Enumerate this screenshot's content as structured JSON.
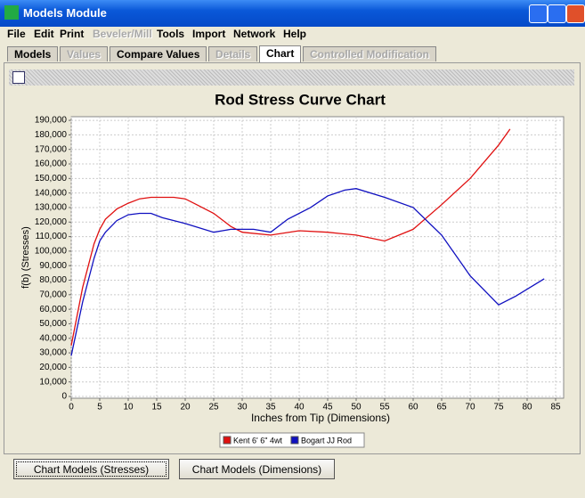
{
  "window": {
    "title": "Models Module"
  },
  "menu": [
    {
      "label": "File"
    },
    {
      "label": "Edit"
    },
    {
      "label": "Print"
    },
    {
      "label": "Beveler/Mill",
      "enabled": false
    },
    {
      "label": "Tools"
    },
    {
      "label": "Import"
    },
    {
      "label": "Network"
    },
    {
      "label": "Help"
    }
  ],
  "tabs": [
    {
      "label": "Models"
    },
    {
      "label": "Values",
      "enabled": false
    },
    {
      "label": "Compare Values"
    },
    {
      "label": "Details",
      "enabled": false
    },
    {
      "label": "Chart",
      "selected": true
    },
    {
      "label": "Controlled Modification",
      "enabled": false
    }
  ],
  "chart_data": {
    "type": "line",
    "title": "Rod Stress Curve Chart",
    "x_label": "Inches from Tip (Dimensions)",
    "y_label": "f(b) (Stresses)",
    "xlim": [
      0,
      86.4
    ],
    "xticks": [
      0,
      5,
      10,
      15,
      20,
      25,
      30,
      35,
      40,
      45,
      50,
      55,
      60,
      65,
      70,
      75,
      80,
      85
    ],
    "ylim": [
      0,
      192500
    ],
    "yticks": [
      0,
      {
        "value": 10000,
        "label": "10,000"
      },
      {
        "value": 20000,
        "label": "20,000"
      },
      {
        "value": 30000,
        "label": "30,000"
      },
      {
        "value": 40000,
        "label": "40,000"
      },
      {
        "value": 50000,
        "label": "50,000"
      },
      {
        "value": 60000,
        "label": "60,000"
      },
      {
        "value": 70000,
        "label": "70,000"
      },
      {
        "value": 80000,
        "label": "80,000"
      },
      {
        "value": 90000,
        "label": "90,000"
      },
      {
        "value": 100000,
        "label": "100,000"
      },
      {
        "value": 110000,
        "label": "110,000"
      },
      {
        "value": 120000,
        "label": "120,000"
      },
      {
        "value": 130000,
        "label": "130,000"
      },
      {
        "value": 140000,
        "label": "140,000"
      },
      {
        "value": 150000,
        "label": "150,000"
      },
      {
        "value": 160000,
        "label": "160,000"
      },
      {
        "value": 170000,
        "label": "170,000"
      },
      {
        "value": 180000,
        "label": "180,000"
      },
      {
        "value": 190000,
        "label": "190,000"
      }
    ],
    "grid": true,
    "series": [
      {
        "name": "Kent 6' 6\" 4wt",
        "color": "#e01010",
        "x": [
          0,
          2,
          4,
          5,
          6,
          8,
          10,
          12,
          14,
          16,
          18,
          20,
          22,
          25,
          28,
          30,
          35,
          40,
          45,
          50,
          55,
          60,
          65,
          70,
          75,
          77
        ],
        "values": [
          35000,
          75000,
          105000,
          115000,
          122000,
          129000,
          133000,
          136000,
          137000,
          137000,
          137000,
          136000,
          132000,
          126000,
          117000,
          113000,
          111000,
          114000,
          113000,
          111000,
          107000,
          115000,
          132000,
          150000,
          173000,
          184000
        ]
      },
      {
        "name": "Bogart JJ Rod",
        "color": "#1010c0",
        "x": [
          0,
          2,
          4,
          5,
          6,
          8,
          10,
          12,
          14,
          16,
          20,
          25,
          28,
          32,
          35,
          38,
          42,
          45,
          48,
          50,
          55,
          60,
          65,
          70,
          75,
          78,
          83
        ],
        "values": [
          28000,
          65000,
          95000,
          107000,
          113000,
          121000,
          125000,
          126000,
          126000,
          123000,
          119000,
          113000,
          115000,
          115000,
          113000,
          122000,
          130000,
          138000,
          142000,
          143000,
          137000,
          130000,
          111000,
          83000,
          63000,
          69000,
          81000
        ]
      }
    ]
  },
  "buttons": [
    "Chart Models (Stresses)",
    "Chart Models (Dimensions)"
  ]
}
